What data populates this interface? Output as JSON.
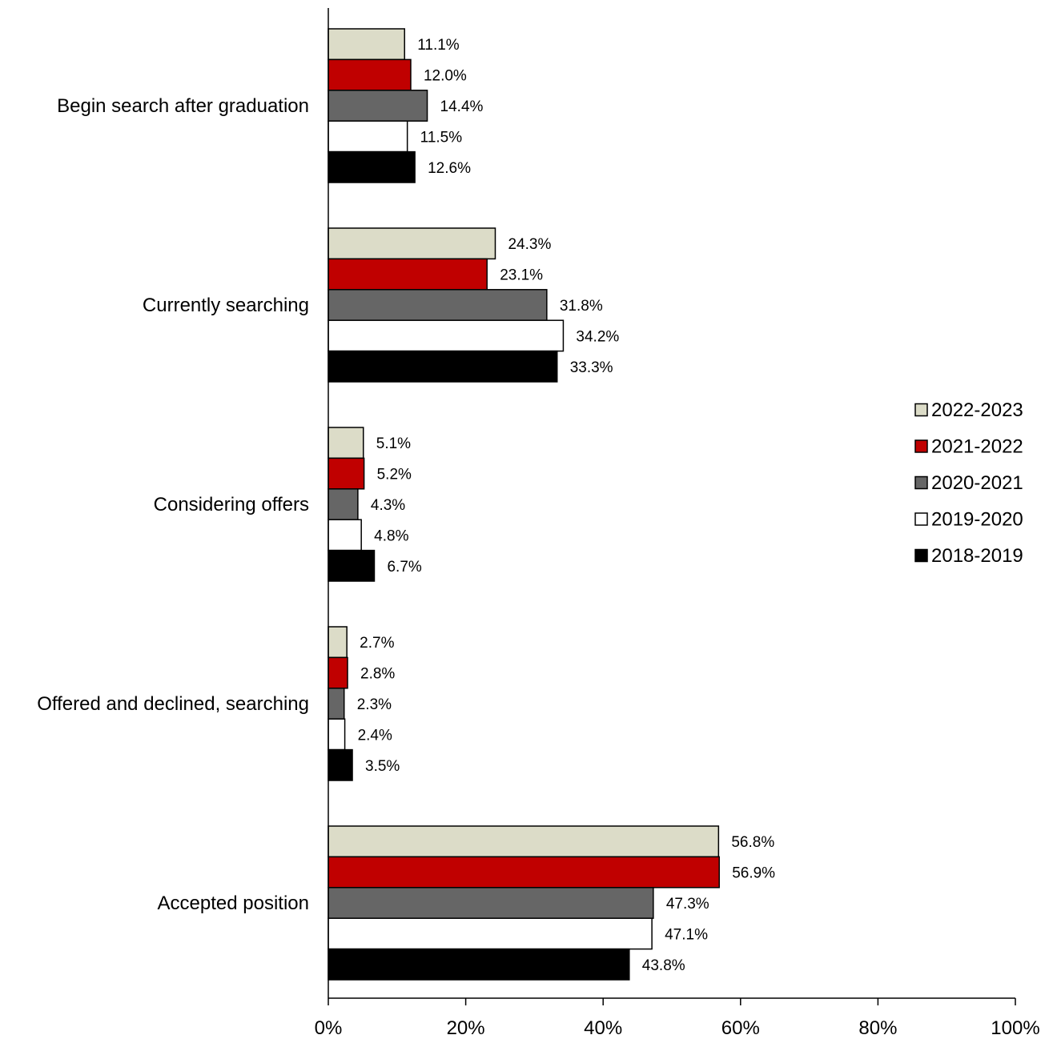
{
  "chart_data": {
    "type": "bar",
    "orientation": "horizontal",
    "categories": [
      "Begin search after graduation",
      "Currently searching",
      "Considering offers",
      "Offered and declined, searching",
      "Accepted position"
    ],
    "series": [
      {
        "name": "2022-2023",
        "color": "#dcdcc8",
        "values": [
          11.1,
          24.3,
          5.1,
          2.7,
          56.8
        ],
        "labels": [
          "11.1%",
          "24.3%",
          "5.1%",
          "2.7%",
          "56.8%"
        ]
      },
      {
        "name": "2021-2022",
        "color": "#c00000",
        "values": [
          12.0,
          23.1,
          5.2,
          2.8,
          56.9
        ],
        "labels": [
          "12.0%",
          "23.1%",
          "5.2%",
          "2.8%",
          "56.9%"
        ]
      },
      {
        "name": "2020-2021",
        "color": "#666666",
        "values": [
          14.4,
          31.8,
          4.3,
          2.3,
          47.3
        ],
        "labels": [
          "14.4%",
          "31.8%",
          "4.3%",
          "2.3%",
          "47.3%"
        ]
      },
      {
        "name": "2019-2020",
        "color": "#ffffff",
        "values": [
          11.5,
          34.2,
          4.8,
          2.4,
          47.1
        ],
        "labels": [
          "11.5%",
          "34.2%",
          "4.8%",
          "2.4%",
          "47.1%"
        ]
      },
      {
        "name": "2018-2019",
        "color": "#000000",
        "values": [
          12.6,
          33.3,
          6.7,
          3.5,
          43.8
        ],
        "labels": [
          "12.6%",
          "33.3%",
          "6.7%",
          "3.5%",
          "43.8%"
        ]
      }
    ],
    "xlim": [
      0,
      100
    ],
    "xticks": [
      0,
      20,
      40,
      60,
      80,
      100
    ],
    "xtick_labels": [
      "0%",
      "20%",
      "40%",
      "60%",
      "80%",
      "100%"
    ],
    "grid": false,
    "legend_position": "right",
    "bar_outline_color": "#000000"
  }
}
